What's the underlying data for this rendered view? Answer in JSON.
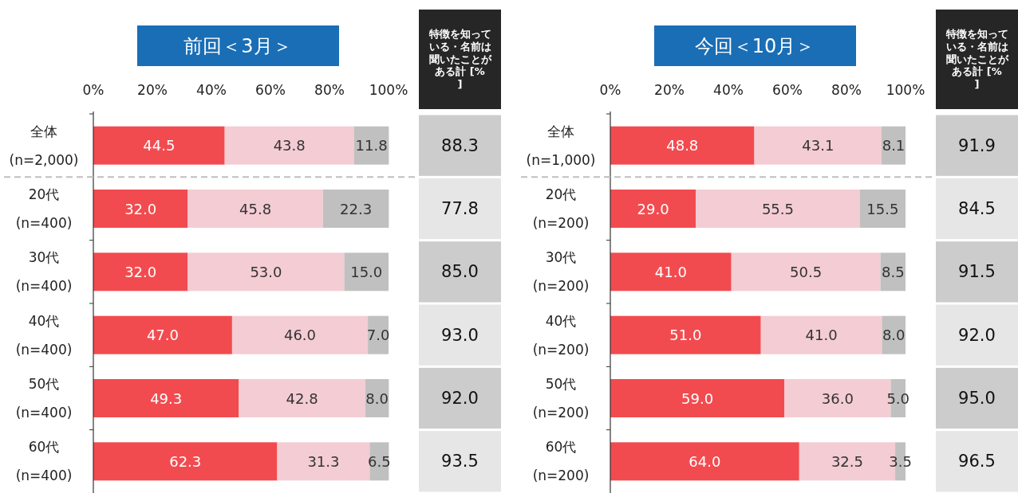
{
  "chart_data": [
    {
      "type": "bar",
      "orientation": "horizontal",
      "stacked": true,
      "title": "前回＜3月＞",
      "categories": [
        "全体\n(n=2,000)",
        "20代\n(n=400)",
        "30代\n(n=400)",
        "40代\n(n=400)",
        "50代\n(n=400)",
        "60代\n(n=400)"
      ],
      "series": [
        {
          "color": "#f24b4f",
          "values": [
            44.5,
            32.0,
            32.0,
            47.0,
            49.3,
            62.3
          ],
          "value_labels": [
            "44.5",
            "32.0",
            "32.0",
            "47.0",
            "49.3",
            "62.3"
          ]
        },
        {
          "color": "#f4ccd4",
          "values": [
            43.8,
            45.8,
            53.0,
            46.0,
            42.8,
            31.3
          ],
          "value_labels": [
            "43.8",
            "45.8",
            "53.0",
            "46.0",
            "42.8",
            "31.3"
          ]
        },
        {
          "color": "#c0c0c0",
          "values": [
            11.8,
            22.3,
            15.0,
            7.0,
            8.0,
            6.5
          ],
          "value_labels": [
            "11.8",
            "22.3",
            "15.0",
            "7.0",
            "8.0",
            "6.5"
          ]
        }
      ],
      "xlim": [
        0,
        100
      ],
      "xticks": [
        {
          "value": 0,
          "label": "0%"
        },
        {
          "value": 20,
          "label": "20%"
        },
        {
          "value": 40,
          "label": "40%"
        },
        {
          "value": 60,
          "label": "60%"
        },
        {
          "value": 80,
          "label": "80%"
        },
        {
          "value": 100,
          "label": "100%"
        }
      ],
      "annotations": [
        "特徴を知っている・名前は聞いたことがある計 [%]",
        "88.3",
        "77.8",
        "85.0",
        "93.0",
        "92.0",
        "93.5"
      ]
    },
    {
      "type": "bar",
      "orientation": "horizontal",
      "stacked": true,
      "title": "今回＜10月＞",
      "categories": [
        "全体\n(n=1,000)",
        "20代\n(n=200)",
        "30代\n(n=200)",
        "40代\n(n=200)",
        "50代\n(n=200)",
        "60代\n(n=200)"
      ],
      "series": [
        {
          "color": "#f24b4f",
          "values": [
            48.8,
            29.0,
            41.0,
            51.0,
            59.0,
            64.0
          ],
          "value_labels": [
            "48.8",
            "29.0",
            "41.0",
            "51.0",
            "59.0",
            "64.0"
          ]
        },
        {
          "color": "#f4ccd4",
          "values": [
            43.1,
            55.5,
            50.5,
            41.0,
            36.0,
            32.5
          ],
          "value_labels": [
            "43.1",
            "55.5",
            "50.5",
            "41.0",
            "36.0",
            "32.5"
          ]
        },
        {
          "color": "#c0c0c0",
          "values": [
            8.1,
            15.5,
            8.5,
            8.0,
            5.0,
            3.5
          ],
          "value_labels": [
            "8.1",
            "15.5",
            "8.5",
            "8.0",
            "5.0",
            "3.5"
          ]
        }
      ],
      "xlim": [
        0,
        100
      ],
      "xticks": [
        {
          "value": 0,
          "label": "0%"
        },
        {
          "value": 20,
          "label": "20%"
        },
        {
          "value": 40,
          "label": "40%"
        },
        {
          "value": 60,
          "label": "60%"
        },
        {
          "value": 80,
          "label": "80%"
        },
        {
          "value": 100,
          "label": "100%"
        }
      ],
      "annotations": [
        "特徴を知っている・名前は聞いたことがある計 [%]",
        "91.9",
        "84.5",
        "91.5",
        "92.0",
        "95.0",
        "96.5"
      ]
    }
  ]
}
